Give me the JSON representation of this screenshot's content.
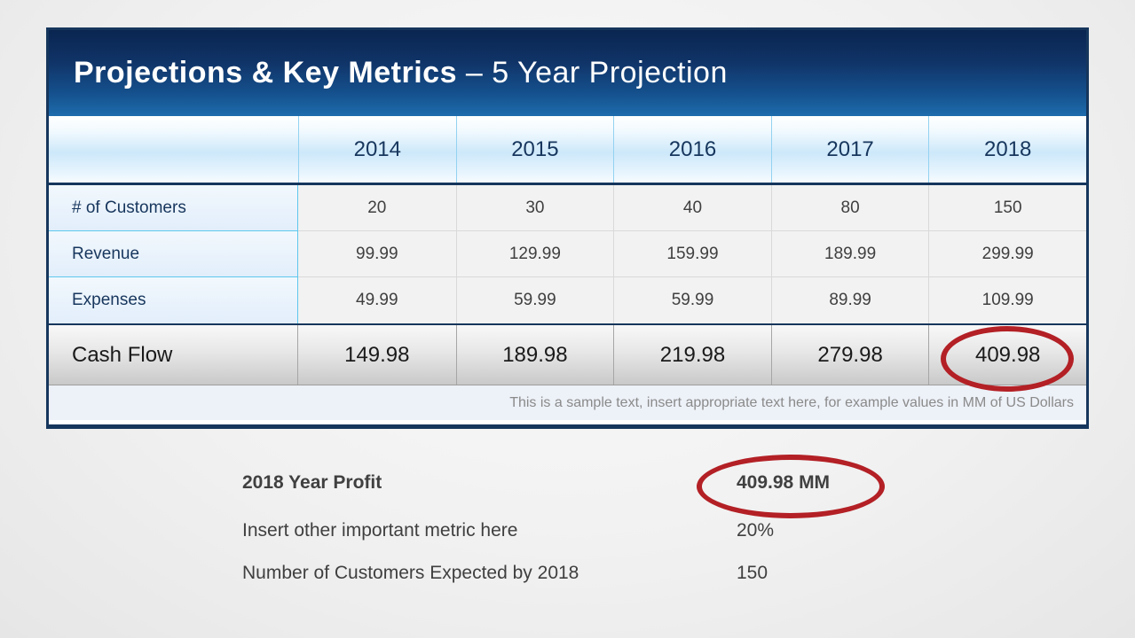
{
  "slide": {
    "title_bold": "Projections & Key Metrics",
    "title_rest": " – 5 Year Projection"
  },
  "table": {
    "years": [
      "2014",
      "2015",
      "2016",
      "2017",
      "2018"
    ],
    "rows": [
      {
        "label": "# of Customers",
        "values": [
          "20",
          "30",
          "40",
          "80",
          "150"
        ]
      },
      {
        "label": "Revenue",
        "values": [
          "99.99",
          "129.99",
          "159.99",
          "189.99",
          "299.99"
        ]
      },
      {
        "label": "Expenses",
        "values": [
          "49.99",
          "59.99",
          "59.99",
          "89.99",
          "109.99"
        ]
      }
    ],
    "total_row": {
      "label": "Cash Flow",
      "values": [
        "149.98",
        "189.98",
        "219.98",
        "279.98",
        "409.98"
      ]
    },
    "footnote": "This is a sample text, insert appropriate text here, for example values in MM  of US Dollars"
  },
  "metrics": [
    {
      "label": "2018 Year Profit",
      "value": "409.98 MM"
    },
    {
      "label": "Insert other important metric here",
      "value": "20%"
    },
    {
      "label": "Number of Customers Expected by 2018",
      "value": "150"
    }
  ],
  "annotations": {
    "circled_table_value": "409.98",
    "circled_metric_value": "409.98 MM",
    "circle_color": "#b32025"
  },
  "colors": {
    "header_navy_top": "#0a2550",
    "header_blue_bottom": "#1e6cac",
    "table_border_navy": "#16365c",
    "label_cell_blue": "#e2eefb",
    "year_band_blue": "#cde8fa",
    "value_cell_gray": "#f2f2f2",
    "footnote_bg": "#edf1f8",
    "text_navy": "#17365d",
    "text_gray": "#3f3f3f"
  },
  "chart_data": {
    "type": "table",
    "title": "Projections & Key Metrics – 5 Year Projection",
    "categories": [
      "2014",
      "2015",
      "2016",
      "2017",
      "2018"
    ],
    "series": [
      {
        "name": "# of Customers",
        "values": [
          20,
          30,
          40,
          80,
          150
        ]
      },
      {
        "name": "Revenue",
        "values": [
          99.99,
          129.99,
          159.99,
          189.99,
          299.99
        ]
      },
      {
        "name": "Expenses",
        "values": [
          49.99,
          59.99,
          59.99,
          89.99,
          109.99
        ]
      },
      {
        "name": "Cash Flow",
        "values": [
          149.98,
          189.98,
          219.98,
          279.98,
          409.98
        ]
      }
    ]
  }
}
